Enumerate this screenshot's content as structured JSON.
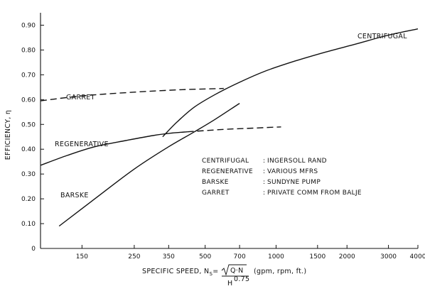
{
  "chart_data": {
    "type": "line",
    "title": "",
    "xlabel_parts": {
      "prefix": "SPECIFIC SPEED, N",
      "sub": "S",
      "eq": "=",
      "numerator": "Q·N",
      "denominator": "H",
      "exponent": "0.75",
      "units": "(gpm, rpm, ft.)"
    },
    "ylabel": "EFFICIENCY, η",
    "x_scale": "log",
    "xlim": [
      100,
      4000
    ],
    "ylim": [
      0,
      0.95
    ],
    "x_ticks": [
      150,
      250,
      350,
      500,
      700,
      1000,
      1500,
      2000,
      3000,
      4000
    ],
    "x_tick_labels": [
      "150",
      "250",
      "350",
      "500",
      "700",
      "1000",
      "1500",
      "2000",
      "3000",
      "4000"
    ],
    "y_ticks": [
      0,
      0.1,
      0.2,
      0.3,
      0.4,
      0.5,
      0.6,
      0.7,
      0.8,
      0.9
    ],
    "y_tick_labels": [
      "0",
      "0.10",
      "0.20",
      "0.30",
      "0.40",
      "0.50",
      "0.60",
      "0.70",
      "0.80",
      "0.90"
    ],
    "grid": false,
    "series": [
      {
        "name": "CENTRIFUGAL",
        "style": "solid",
        "x": [
          330,
          380,
          450,
          550,
          700,
          900,
          1200,
          1600,
          2200,
          3000,
          4000
        ],
        "y": [
          0.45,
          0.51,
          0.57,
          0.62,
          0.67,
          0.715,
          0.755,
          0.79,
          0.825,
          0.86,
          0.885
        ]
      },
      {
        "name": "REGENERATIVE",
        "style": "solid",
        "x": [
          100,
          130,
          170,
          230,
          300,
          360,
          420
        ],
        "y": [
          0.335,
          0.375,
          0.41,
          0.435,
          0.455,
          0.465,
          0.47
        ]
      },
      {
        "name": "REGENERATIVE",
        "style": "dashed",
        "x": [
          420,
          600,
          800,
          1050
        ],
        "y": [
          0.47,
          0.48,
          0.485,
          0.49
        ]
      },
      {
        "name": "BARSKE",
        "style": "solid",
        "x": [
          120,
          170,
          250,
          350,
          450,
          550,
          700
        ],
        "y": [
          0.09,
          0.2,
          0.32,
          0.41,
          0.47,
          0.52,
          0.585
        ]
      },
      {
        "name": "GARRET",
        "style": "dashed",
        "x": [
          100,
          150,
          250,
          400,
          600
        ],
        "y": [
          0.595,
          0.615,
          0.63,
          0.64,
          0.645
        ]
      }
    ],
    "curve_labels": [
      "CENTRIFUGAL",
      "GARRET",
      "REGENERATIVE",
      "BARSKE"
    ],
    "legend": [
      {
        "key": "CENTRIFUGAL",
        "sep": ":",
        "value": "INGERSOLL RAND"
      },
      {
        "key": "REGENERATIVE",
        "sep": ":",
        "value": "VARIOUS MFRS"
      },
      {
        "key": "BARSKE",
        "sep": ":",
        "value": "SUNDYNE PUMP"
      },
      {
        "key": "GARRET",
        "sep": ":",
        "value": "PRIVATE COMM FROM BALJE"
      }
    ]
  }
}
